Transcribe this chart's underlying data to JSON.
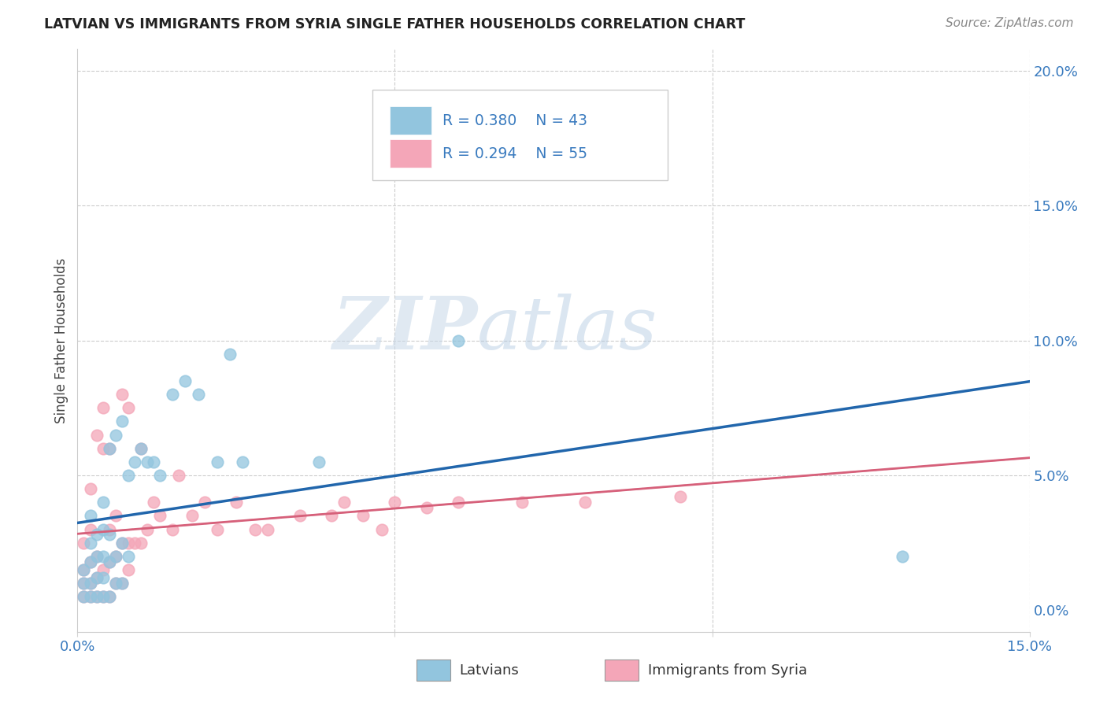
{
  "title": "LATVIAN VS IMMIGRANTS FROM SYRIA SINGLE FATHER HOUSEHOLDS CORRELATION CHART",
  "source": "Source: ZipAtlas.com",
  "ylabel": "Single Father Households",
  "xlim": [
    0.0,
    0.15
  ],
  "ylim": [
    -0.008,
    0.208
  ],
  "blue_color": "#92c5de",
  "pink_color": "#f4a6b8",
  "blue_line_color": "#2166ac",
  "pink_line_color": "#d6607a",
  "pink_dash_color": "#d6607a",
  "label_color": "#3a7bbf",
  "legend_R_blue": "0.380",
  "legend_N_blue": "43",
  "legend_R_pink": "0.294",
  "legend_N_pink": "55",
  "watermark_zip": "ZIP",
  "watermark_atlas": "atlas",
  "blue_scatter_x": [
    0.001,
    0.001,
    0.001,
    0.002,
    0.002,
    0.002,
    0.002,
    0.002,
    0.003,
    0.003,
    0.003,
    0.003,
    0.004,
    0.004,
    0.004,
    0.004,
    0.004,
    0.005,
    0.005,
    0.005,
    0.005,
    0.006,
    0.006,
    0.006,
    0.007,
    0.007,
    0.007,
    0.008,
    0.008,
    0.009,
    0.01,
    0.011,
    0.012,
    0.013,
    0.015,
    0.017,
    0.019,
    0.022,
    0.024,
    0.026,
    0.038,
    0.06,
    0.13
  ],
  "blue_scatter_y": [
    0.005,
    0.01,
    0.015,
    0.005,
    0.01,
    0.018,
    0.025,
    0.035,
    0.005,
    0.012,
    0.02,
    0.028,
    0.005,
    0.012,
    0.02,
    0.03,
    0.04,
    0.005,
    0.018,
    0.028,
    0.06,
    0.01,
    0.02,
    0.065,
    0.01,
    0.025,
    0.07,
    0.02,
    0.05,
    0.055,
    0.06,
    0.055,
    0.055,
    0.05,
    0.08,
    0.085,
    0.08,
    0.055,
    0.095,
    0.055,
    0.055,
    0.1,
    0.02
  ],
  "pink_scatter_x": [
    0.001,
    0.001,
    0.001,
    0.001,
    0.002,
    0.002,
    0.002,
    0.002,
    0.002,
    0.003,
    0.003,
    0.003,
    0.003,
    0.004,
    0.004,
    0.004,
    0.004,
    0.005,
    0.005,
    0.005,
    0.005,
    0.006,
    0.006,
    0.006,
    0.007,
    0.007,
    0.007,
    0.008,
    0.008,
    0.008,
    0.009,
    0.01,
    0.01,
    0.011,
    0.012,
    0.013,
    0.015,
    0.016,
    0.018,
    0.02,
    0.022,
    0.025,
    0.028,
    0.03,
    0.035,
    0.04,
    0.042,
    0.045,
    0.048,
    0.05,
    0.055,
    0.06,
    0.07,
    0.08,
    0.095
  ],
  "pink_scatter_y": [
    0.005,
    0.01,
    0.015,
    0.025,
    0.005,
    0.01,
    0.018,
    0.03,
    0.045,
    0.005,
    0.012,
    0.02,
    0.065,
    0.005,
    0.015,
    0.06,
    0.075,
    0.005,
    0.018,
    0.03,
    0.06,
    0.01,
    0.02,
    0.035,
    0.01,
    0.025,
    0.08,
    0.015,
    0.025,
    0.075,
    0.025,
    0.025,
    0.06,
    0.03,
    0.04,
    0.035,
    0.03,
    0.05,
    0.035,
    0.04,
    0.03,
    0.04,
    0.03,
    0.03,
    0.035,
    0.035,
    0.04,
    0.035,
    0.03,
    0.04,
    0.038,
    0.04,
    0.04,
    0.04,
    0.042
  ]
}
